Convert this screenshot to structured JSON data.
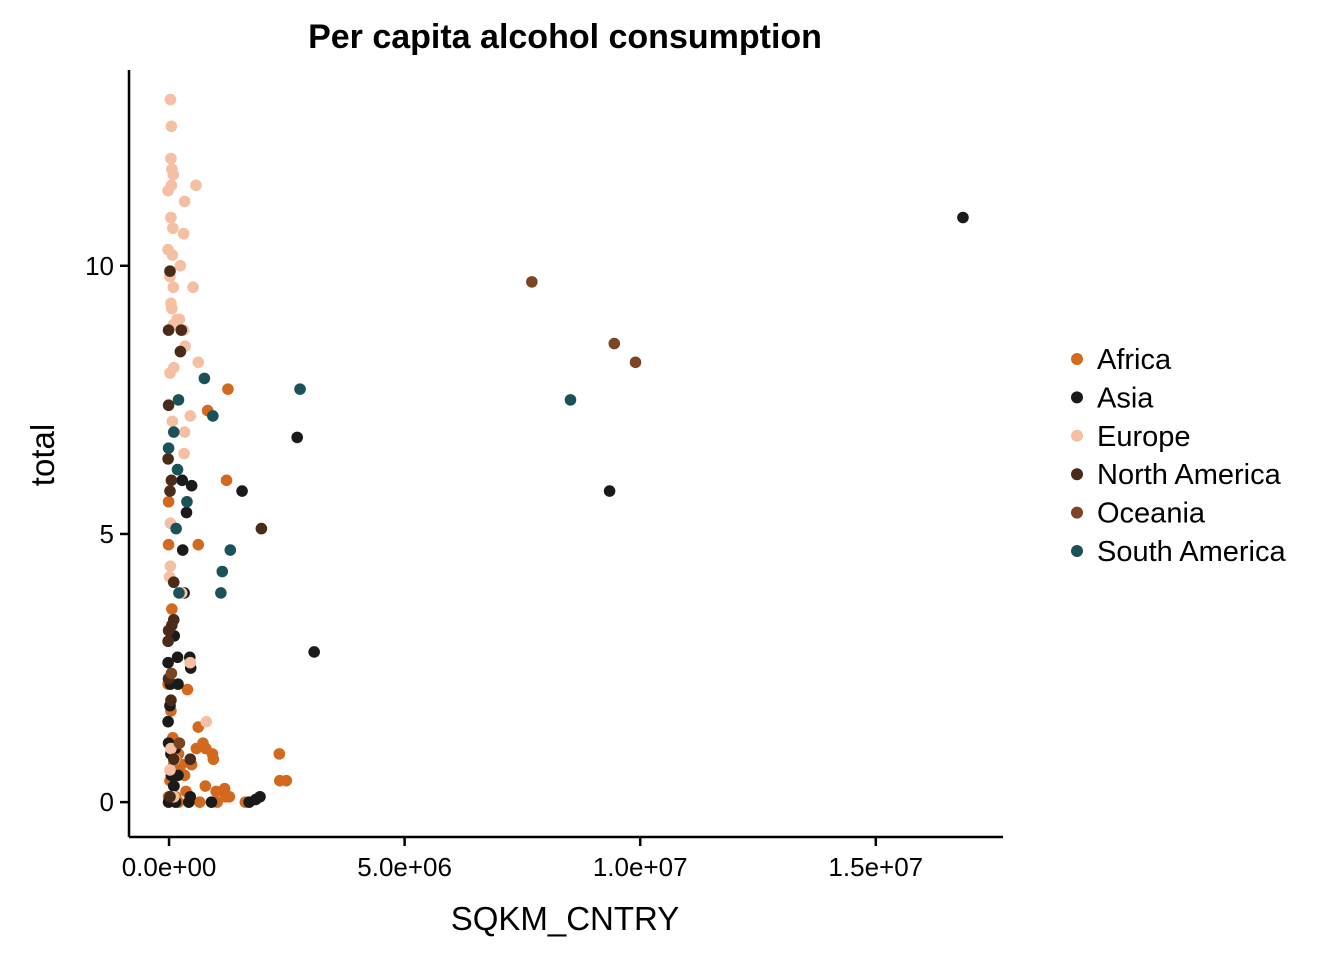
{
  "chart_data": {
    "type": "scatter",
    "title": "Per capita alcohol consumption",
    "xlabel": "SQKM_CNTRY",
    "ylabel": "total",
    "xlim": [
      -850000,
      17700000
    ],
    "ylim": [
      -0.65,
      13.65
    ],
    "x_ticks": [
      0,
      5000000,
      10000000,
      15000000
    ],
    "x_tick_labels": [
      "0.0e+00",
      "5.0e+06",
      "1.0e+07",
      "1.5e+07"
    ],
    "y_ticks": [
      0,
      5,
      10
    ],
    "y_tick_labels": [
      "0",
      "5",
      "10"
    ],
    "grid": false,
    "legend_position": "right",
    "series": [
      {
        "name": "Africa",
        "color": "#D2691E",
        "points": [
          [
            1250000,
            7.7
          ],
          [
            820000,
            7.3
          ],
          [
            1220000,
            6.0
          ],
          [
            620000,
            4.8
          ],
          [
            -10000,
            5.6
          ],
          [
            -10000,
            4.8
          ],
          [
            60000,
            3.6
          ],
          [
            450000,
            2.6
          ],
          [
            390000,
            2.1
          ],
          [
            -20000,
            2.2
          ],
          [
            40000,
            1.7
          ],
          [
            2340000,
            0.9
          ],
          [
            2350000,
            0.4
          ],
          [
            2490000,
            0.4
          ],
          [
            580000,
            1.0
          ],
          [
            720000,
            1.1
          ],
          [
            780000,
            1.0
          ],
          [
            920000,
            0.9
          ],
          [
            940000,
            0.8
          ],
          [
            620000,
            1.4
          ],
          [
            1000000,
            0.2
          ],
          [
            1280000,
            0.1
          ],
          [
            1200000,
            0.1
          ],
          [
            1180000,
            0.25
          ],
          [
            770000,
            0.3
          ],
          [
            650000,
            0.0
          ],
          [
            1020000,
            0.0
          ],
          [
            1620000,
            0.0
          ],
          [
            110000,
            0.3
          ],
          [
            140000,
            0.1
          ],
          [
            200000,
            0.9
          ],
          [
            260000,
            0.7
          ],
          [
            330000,
            0.5
          ],
          [
            360000,
            0.2
          ],
          [
            80000,
            1.2
          ],
          [
            20000,
            0.4
          ],
          [
            100000,
            0.7
          ],
          [
            -10000,
            0.1
          ],
          [
            200000,
            0.0
          ],
          [
            70000,
            0.9
          ],
          [
            480000,
            0.7
          ]
        ]
      },
      {
        "name": "Asia",
        "color": "#1A1A1A",
        "points": [
          [
            16850000,
            10.9
          ],
          [
            2720000,
            6.8
          ],
          [
            9350000,
            5.8
          ],
          [
            1550000,
            5.8
          ],
          [
            3080000,
            2.8
          ],
          [
            480000,
            5.9
          ],
          [
            280000,
            6.0
          ],
          [
            370000,
            5.4
          ],
          [
            290000,
            4.7
          ],
          [
            320000,
            3.9
          ],
          [
            -20000,
            2.6
          ],
          [
            110000,
            3.1
          ],
          [
            180000,
            2.7
          ],
          [
            440000,
            2.7
          ],
          [
            460000,
            2.5
          ],
          [
            -10000,
            2.3
          ],
          [
            30000,
            2.2
          ],
          [
            190000,
            2.2
          ],
          [
            20000,
            1.8
          ],
          [
            -20000,
            1.5
          ],
          [
            -10000,
            1.1
          ],
          [
            40000,
            0.9
          ],
          [
            130000,
            1.0
          ],
          [
            60000,
            0.5
          ],
          [
            100000,
            0.3
          ],
          [
            50000,
            0.5
          ],
          [
            190000,
            0.5
          ],
          [
            -10000,
            0.0
          ],
          [
            80000,
            0.1
          ],
          [
            140000,
            0.0
          ],
          [
            450000,
            0.1
          ],
          [
            900000,
            0.0
          ],
          [
            1700000,
            0.0
          ],
          [
            1840000,
            0.05
          ],
          [
            1930000,
            0.1
          ],
          [
            420000,
            0.0
          ]
        ]
      },
      {
        "name": "Europe",
        "color": "#F4BFA3",
        "points": [
          [
            30000,
            13.1
          ],
          [
            50000,
            12.6
          ],
          [
            40000,
            12.0
          ],
          [
            60000,
            11.8
          ],
          [
            90000,
            11.7
          ],
          [
            50000,
            11.5
          ],
          [
            -20000,
            11.4
          ],
          [
            570000,
            11.5
          ],
          [
            330000,
            11.2
          ],
          [
            40000,
            10.9
          ],
          [
            80000,
            10.7
          ],
          [
            310000,
            10.6
          ],
          [
            -20000,
            10.3
          ],
          [
            70000,
            10.2
          ],
          [
            240000,
            10.0
          ],
          [
            20000,
            9.8
          ],
          [
            90000,
            9.6
          ],
          [
            510000,
            9.6
          ],
          [
            40000,
            9.3
          ],
          [
            60000,
            9.2
          ],
          [
            220000,
            9.0
          ],
          [
            170000,
            9.0
          ],
          [
            90000,
            8.9
          ],
          [
            310000,
            8.8
          ],
          [
            340000,
            8.5
          ],
          [
            620000,
            8.2
          ],
          [
            100000,
            8.1
          ],
          [
            20000,
            8.0
          ],
          [
            450000,
            7.2
          ],
          [
            70000,
            7.1
          ],
          [
            330000,
            6.9
          ],
          [
            320000,
            6.5
          ],
          [
            30000,
            5.2
          ],
          [
            30000,
            4.4
          ],
          [
            10000,
            4.2
          ],
          [
            270000,
            3.9
          ],
          [
            450000,
            2.6
          ],
          [
            790000,
            1.5
          ],
          [
            40000,
            1.0
          ],
          [
            120000,
            0.8
          ],
          [
            20000,
            0.6
          ],
          [
            100000,
            0.1
          ]
        ]
      },
      {
        "name": "North America",
        "color": "#4A2A18",
        "points": [
          [
            20000,
            9.9
          ],
          [
            260000,
            8.8
          ],
          [
            -10000,
            8.8
          ],
          [
            240000,
            8.4
          ],
          [
            1960000,
            5.1
          ],
          [
            -10000,
            7.4
          ],
          [
            -20000,
            6.4
          ],
          [
            50000,
            6.0
          ],
          [
            20000,
            5.8
          ],
          [
            100000,
            4.1
          ],
          [
            100000,
            3.4
          ],
          [
            60000,
            3.3
          ],
          [
            -10000,
            3.2
          ],
          [
            -20000,
            3.0
          ],
          [
            -10000,
            2.3
          ],
          [
            40000,
            1.9
          ],
          [
            450000,
            0.8
          ],
          [
            100000,
            0.8
          ],
          [
            20000,
            0.1
          ]
        ]
      },
      {
        "name": "Oceania",
        "color": "#7A4520",
        "points": [
          [
            7700000,
            9.7
          ],
          [
            9450000,
            8.55
          ],
          [
            9900000,
            8.2
          ],
          [
            50000,
            2.4
          ],
          [
            220000,
            1.1
          ]
        ]
      },
      {
        "name": "South America",
        "color": "#1B525A",
        "points": [
          [
            8520000,
            7.5
          ],
          [
            2780000,
            7.7
          ],
          [
            750000,
            7.9
          ],
          [
            930000,
            7.2
          ],
          [
            200000,
            7.5
          ],
          [
            100000,
            6.9
          ],
          [
            -10000,
            6.6
          ],
          [
            180000,
            6.2
          ],
          [
            380000,
            5.6
          ],
          [
            150000,
            5.1
          ],
          [
            1300000,
            4.7
          ],
          [
            1130000,
            4.3
          ],
          [
            1100000,
            3.9
          ],
          [
            210000,
            3.9
          ]
        ]
      }
    ]
  }
}
